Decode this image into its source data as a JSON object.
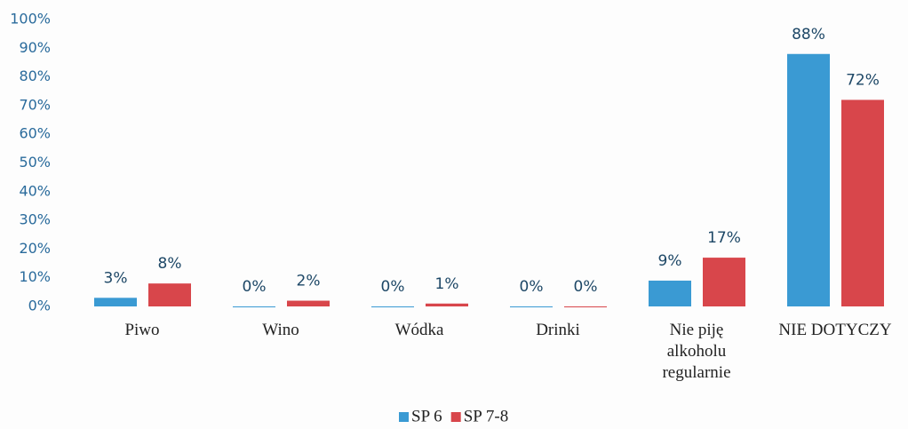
{
  "chart_data": {
    "type": "bar",
    "categories": [
      "Piwo",
      "Wino",
      "Wódka",
      "Drinki",
      "Nie piję alkoholu regularnie",
      "NIE DOTYCZY"
    ],
    "series": [
      {
        "name": "SP 6",
        "color": "#3a9ad3",
        "values": [
          3,
          0,
          0,
          0,
          9,
          88
        ],
        "value_labels": [
          "3%",
          "0%",
          "0%",
          "0%",
          "9%",
          "88%"
        ]
      },
      {
        "name": "SP 7-8",
        "color": "#d8464b",
        "values": [
          8,
          2,
          1,
          0,
          17,
          72
        ],
        "value_labels": [
          "8%",
          "2%",
          "1%",
          "0%",
          "17%",
          "72%"
        ]
      }
    ],
    "ylim": [
      0,
      100
    ],
    "yticks": [
      {
        "value": 0,
        "label": "0%"
      },
      {
        "value": 10,
        "label": "10%"
      },
      {
        "value": 20,
        "label": "20%"
      },
      {
        "value": 30,
        "label": "30%"
      },
      {
        "value": 40,
        "label": "40%"
      },
      {
        "value": 50,
        "label": "50%"
      },
      {
        "value": 60,
        "label": "60%"
      },
      {
        "value": 70,
        "label": "70%"
      },
      {
        "value": 80,
        "label": "80%"
      },
      {
        "value": 90,
        "label": "90%"
      },
      {
        "value": 100,
        "label": "100%"
      }
    ],
    "legend": "bottom"
  }
}
